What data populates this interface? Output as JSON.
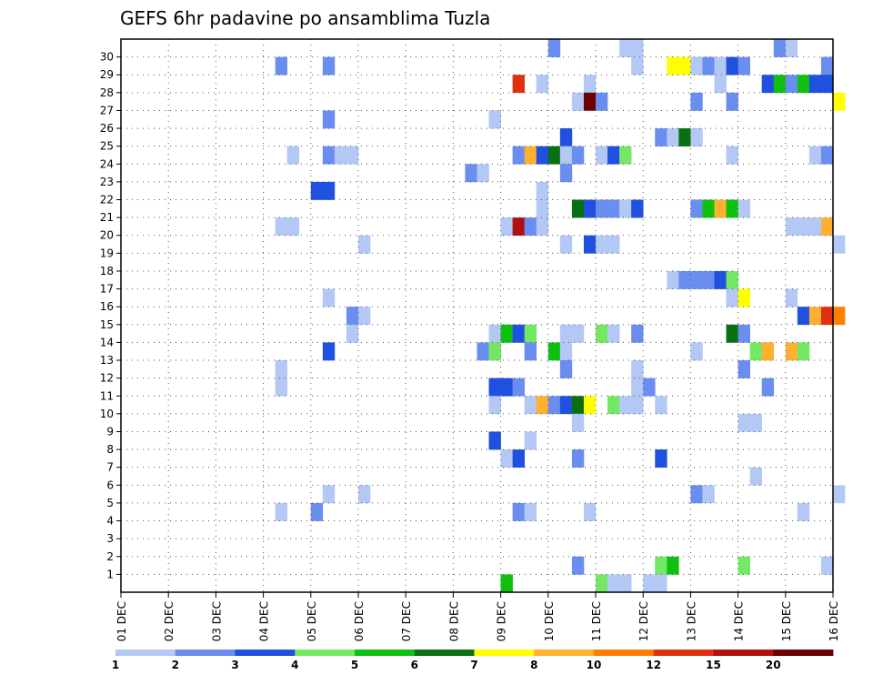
{
  "chart_data": {
    "type": "heatmap",
    "title": "GEFS 6hr padavine po ansamblima Tuzla",
    "xlabel": "",
    "ylabel": "",
    "x_tick_labels": [
      "01 DEC",
      "02 DEC",
      "03 DEC",
      "04 DEC",
      "05 DEC",
      "06 DEC",
      "07 DEC",
      "08 DEC",
      "09 DEC",
      "10 DEC",
      "11 DEC",
      "12 DEC",
      "13 DEC",
      "14 DEC",
      "15 DEC",
      "16 DEC"
    ],
    "y_tick_labels": [
      "1",
      "2",
      "3",
      "4",
      "5",
      "6",
      "7",
      "8",
      "9",
      "10",
      "11",
      "12",
      "13",
      "14",
      "15",
      "16",
      "17",
      "18",
      "19",
      "20",
      "21",
      "22",
      "23",
      "24",
      "25",
      "26",
      "27",
      "28",
      "29",
      "30"
    ],
    "x_range_days": [
      1,
      16
    ],
    "y_range_members": [
      0,
      30
    ],
    "steps_per_day": 4,
    "grid": "dotted",
    "legend": {
      "placement": "bottom",
      "labels": [
        "1",
        "2",
        "3",
        "4",
        "5",
        "6",
        "7",
        "8",
        "10",
        "12",
        "15",
        "20"
      ],
      "colors": [
        "#b4c8f5",
        "#6a8ef0",
        "#2050e0",
        "#74e864",
        "#10c010",
        "#087010",
        "#ffff00",
        "#ffb030",
        "#ff7f00",
        "#e03010",
        "#b01010",
        "#6e0000"
      ]
    },
    "level_colors": {
      "1": "#b4c8f5",
      "2": "#6a8ef0",
      "3": "#2050e0",
      "4": "#74e864",
      "5": "#10c010",
      "6": "#087010",
      "7": "#ffff00",
      "8": "#ffb030",
      "9": "#ff7f00",
      "10": "#e03010",
      "11": "#b01010",
      "12": "#6e0000"
    },
    "cells_note_unit": "[step_index, member, color_level]",
    "cells": [
      [
        36,
        30,
        2
      ],
      [
        42,
        30,
        1
      ],
      [
        43,
        30,
        1
      ],
      [
        55,
        30,
        2
      ],
      [
        56,
        30,
        1
      ],
      [
        13,
        29,
        2
      ],
      [
        17,
        29,
        2
      ],
      [
        43,
        29,
        1
      ],
      [
        46,
        29,
        7
      ],
      [
        47,
        29,
        7
      ],
      [
        48,
        29,
        1
      ],
      [
        49,
        29,
        2
      ],
      [
        50,
        29,
        1
      ],
      [
        51,
        29,
        3
      ],
      [
        52,
        29,
        2
      ],
      [
        59,
        29,
        2
      ],
      [
        33,
        28,
        10
      ],
      [
        35,
        28,
        1
      ],
      [
        39,
        28,
        1
      ],
      [
        50,
        28,
        1
      ],
      [
        54,
        28,
        3
      ],
      [
        55,
        28,
        5
      ],
      [
        56,
        28,
        2
      ],
      [
        57,
        28,
        5
      ],
      [
        58,
        28,
        3
      ],
      [
        59,
        28,
        3
      ],
      [
        38,
        27,
        1
      ],
      [
        39,
        27,
        12
      ],
      [
        40,
        27,
        2
      ],
      [
        48,
        27,
        2
      ],
      [
        51,
        27,
        2
      ],
      [
        60,
        27,
        7
      ],
      [
        17,
        26,
        2
      ],
      [
        31,
        26,
        1
      ],
      [
        37,
        25,
        3
      ],
      [
        45,
        25,
        2
      ],
      [
        46,
        25,
        1
      ],
      [
        47,
        25,
        6
      ],
      [
        48,
        25,
        1
      ],
      [
        14,
        24,
        1
      ],
      [
        17,
        24,
        2
      ],
      [
        18,
        24,
        1
      ],
      [
        19,
        24,
        1
      ],
      [
        33,
        24,
        2
      ],
      [
        34,
        24,
        8
      ],
      [
        35,
        24,
        3
      ],
      [
        36,
        24,
        6
      ],
      [
        37,
        24,
        1
      ],
      [
        38,
        24,
        2
      ],
      [
        40,
        24,
        1
      ],
      [
        41,
        24,
        3
      ],
      [
        42,
        24,
        4
      ],
      [
        51,
        24,
        1
      ],
      [
        58,
        24,
        1
      ],
      [
        59,
        24,
        2
      ],
      [
        29,
        23,
        2
      ],
      [
        30,
        23,
        1
      ],
      [
        37,
        23,
        2
      ],
      [
        16,
        22,
        3
      ],
      [
        17,
        22,
        3
      ],
      [
        35,
        22,
        1
      ],
      [
        35,
        21,
        1
      ],
      [
        38,
        21,
        6
      ],
      [
        39,
        21,
        3
      ],
      [
        40,
        21,
        2
      ],
      [
        41,
        21,
        2
      ],
      [
        42,
        21,
        1
      ],
      [
        43,
        21,
        3
      ],
      [
        48,
        21,
        2
      ],
      [
        49,
        21,
        5
      ],
      [
        50,
        21,
        8
      ],
      [
        51,
        21,
        5
      ],
      [
        52,
        21,
        1
      ],
      [
        13,
        20,
        1
      ],
      [
        14,
        20,
        1
      ],
      [
        32,
        20,
        1
      ],
      [
        33,
        20,
        11
      ],
      [
        34,
        20,
        2
      ],
      [
        35,
        20,
        1
      ],
      [
        56,
        20,
        1
      ],
      [
        57,
        20,
        1
      ],
      [
        58,
        20,
        1
      ],
      [
        59,
        20,
        8
      ],
      [
        20,
        19,
        1
      ],
      [
        37,
        19,
        1
      ],
      [
        39,
        19,
        3
      ],
      [
        40,
        19,
        1
      ],
      [
        41,
        19,
        1
      ],
      [
        60,
        19,
        1
      ],
      [
        46,
        17,
        1
      ],
      [
        47,
        17,
        2
      ],
      [
        48,
        17,
        2
      ],
      [
        49,
        17,
        2
      ],
      [
        50,
        17,
        3
      ],
      [
        51,
        17,
        4
      ],
      [
        17,
        16,
        1
      ],
      [
        51,
        16,
        1
      ],
      [
        52,
        16,
        7
      ],
      [
        56,
        16,
        1
      ],
      [
        19,
        15,
        2
      ],
      [
        20,
        15,
        1
      ],
      [
        57,
        15,
        3
      ],
      [
        58,
        15,
        8
      ],
      [
        59,
        15,
        10
      ],
      [
        60,
        15,
        9
      ],
      [
        19,
        14,
        1
      ],
      [
        31,
        14,
        1
      ],
      [
        32,
        14,
        5
      ],
      [
        33,
        14,
        3
      ],
      [
        34,
        14,
        4
      ],
      [
        37,
        14,
        1
      ],
      [
        38,
        14,
        1
      ],
      [
        40,
        14,
        4
      ],
      [
        41,
        14,
        1
      ],
      [
        43,
        14,
        2
      ],
      [
        51,
        14,
        6
      ],
      [
        52,
        14,
        2
      ],
      [
        17,
        13,
        3
      ],
      [
        30,
        13,
        2
      ],
      [
        31,
        13,
        4
      ],
      [
        34,
        13,
        2
      ],
      [
        36,
        13,
        5
      ],
      [
        37,
        13,
        1
      ],
      [
        48,
        13,
        1
      ],
      [
        53,
        13,
        4
      ],
      [
        54,
        13,
        8
      ],
      [
        56,
        13,
        8
      ],
      [
        57,
        13,
        4
      ],
      [
        13,
        12,
        1
      ],
      [
        37,
        12,
        2
      ],
      [
        43,
        12,
        1
      ],
      [
        52,
        12,
        2
      ],
      [
        13,
        11,
        1
      ],
      [
        31,
        11,
        3
      ],
      [
        32,
        11,
        3
      ],
      [
        33,
        11,
        2
      ],
      [
        43,
        11,
        1
      ],
      [
        44,
        11,
        2
      ],
      [
        54,
        11,
        2
      ],
      [
        31,
        10,
        1
      ],
      [
        34,
        10,
        1
      ],
      [
        35,
        10,
        8
      ],
      [
        36,
        10,
        2
      ],
      [
        37,
        10,
        3
      ],
      [
        38,
        10,
        6
      ],
      [
        39,
        10,
        7
      ],
      [
        41,
        10,
        4
      ],
      [
        42,
        10,
        1
      ],
      [
        43,
        10,
        1
      ],
      [
        45,
        10,
        1
      ],
      [
        38,
        9,
        1
      ],
      [
        52,
        9,
        1
      ],
      [
        53,
        9,
        1
      ],
      [
        31,
        8,
        3
      ],
      [
        34,
        8,
        1
      ],
      [
        32,
        7,
        1
      ],
      [
        33,
        7,
        3
      ],
      [
        38,
        7,
        2
      ],
      [
        45,
        7,
        3
      ],
      [
        53,
        6,
        1
      ],
      [
        17,
        5,
        1
      ],
      [
        20,
        5,
        1
      ],
      [
        48,
        5,
        2
      ],
      [
        49,
        5,
        1
      ],
      [
        60,
        5,
        1
      ],
      [
        13,
        4,
        1
      ],
      [
        16,
        4,
        2
      ],
      [
        33,
        4,
        2
      ],
      [
        34,
        4,
        1
      ],
      [
        39,
        4,
        1
      ],
      [
        57,
        4,
        1
      ],
      [
        38,
        1,
        2
      ],
      [
        45,
        1,
        4
      ],
      [
        46,
        1,
        5
      ],
      [
        52,
        1,
        4
      ],
      [
        59,
        1,
        1
      ],
      [
        32,
        0,
        5
      ],
      [
        40,
        0,
        4
      ],
      [
        41,
        0,
        1
      ],
      [
        42,
        0,
        1
      ],
      [
        44,
        0,
        1
      ],
      [
        45,
        0,
        1
      ]
    ]
  }
}
